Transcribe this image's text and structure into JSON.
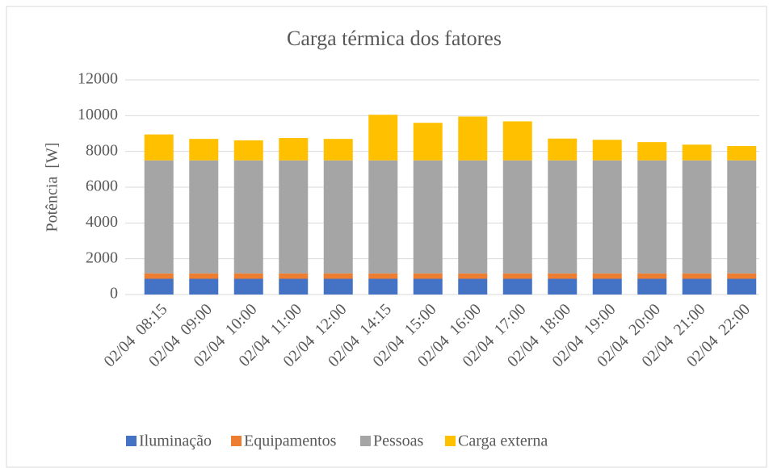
{
  "chart_data": {
    "type": "stacked_bar",
    "title": "Carga térmica dos fatores",
    "y_label": "Potência  [W]",
    "categories": [
      "02/04  08:15",
      "02/04  09:00",
      "02/04  10:00",
      "02/04  11:00",
      "02/04  12:00",
      "02/04  14:15",
      "02/04  15:00",
      "02/04  16:00",
      "02/04  17:00",
      "02/04  18:00",
      "02/04  19:00",
      "02/04  20:00",
      "02/04  21:00",
      "02/04  22:00"
    ],
    "series": [
      {
        "name": "Iluminação",
        "color": "#4472c4",
        "values": [
          880,
          880,
          880,
          880,
          880,
          880,
          880,
          880,
          880,
          880,
          880,
          880,
          880,
          880
        ]
      },
      {
        "name": "Equipamentos",
        "color": "#ed7d31",
        "values": [
          300,
          300,
          300,
          300,
          300,
          300,
          300,
          300,
          300,
          300,
          300,
          300,
          300,
          300
        ]
      },
      {
        "name": "Pessoas",
        "color": "#a5a5a5",
        "values": [
          6320,
          6320,
          6320,
          6320,
          6320,
          6320,
          6320,
          6320,
          6320,
          6320,
          6320,
          6320,
          6320,
          6320
        ]
      },
      {
        "name": "Carga externa",
        "color": "#ffc000",
        "values": [
          1450,
          1200,
          1120,
          1250,
          1200,
          2550,
          2100,
          2450,
          2180,
          1220,
          1150,
          1020,
          880,
          800
        ]
      }
    ],
    "ylim": [
      0,
      12000
    ],
    "yticks": [
      0,
      2000,
      4000,
      6000,
      8000,
      10000,
      12000
    ],
    "grid": true,
    "legend": "bottom"
  }
}
